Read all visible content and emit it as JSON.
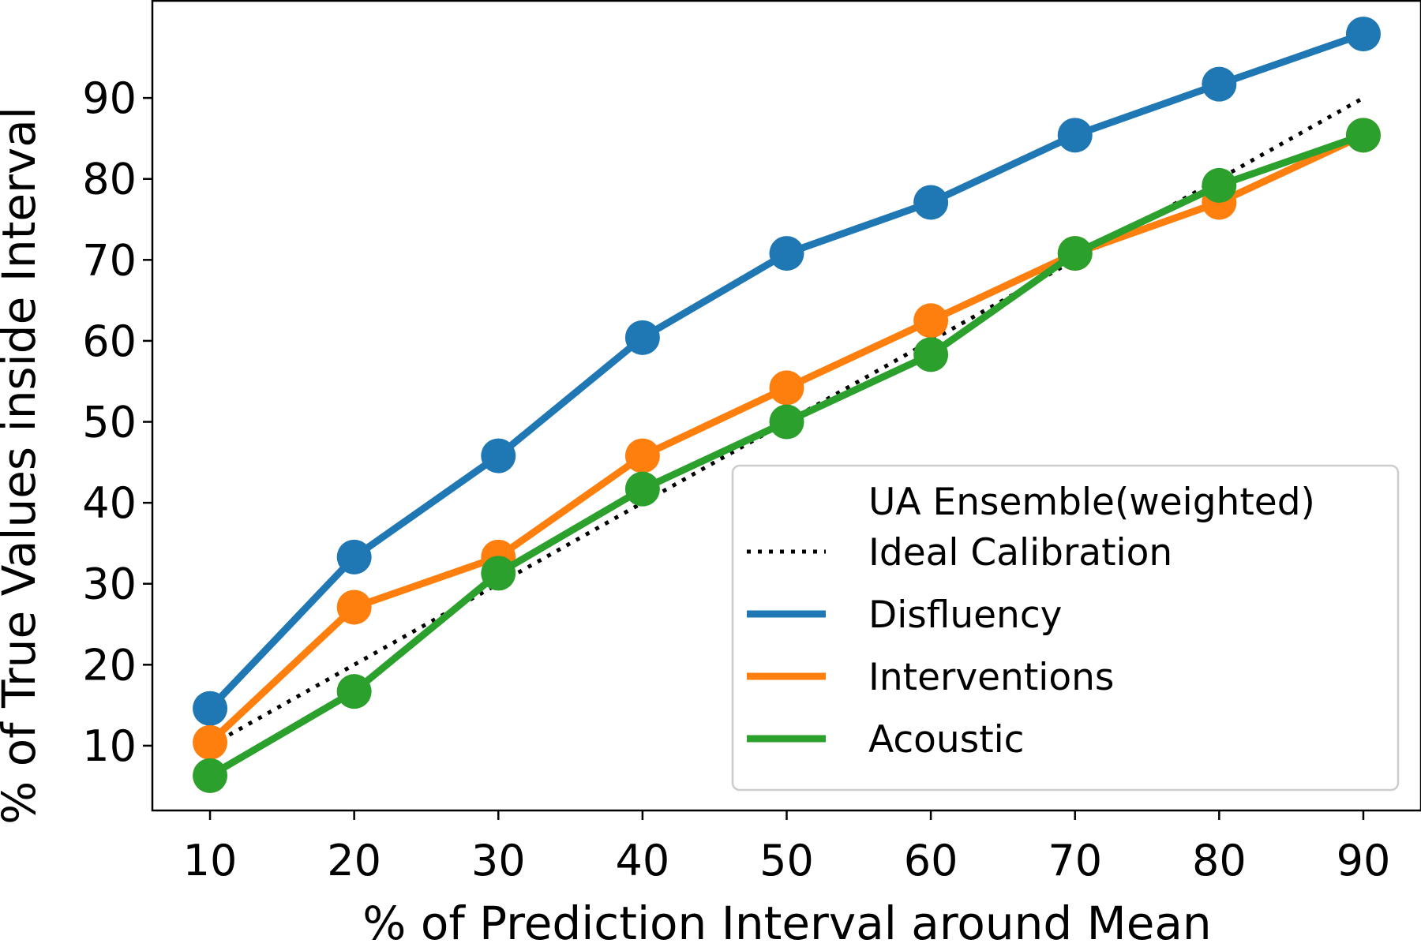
{
  "chart_data": {
    "type": "line",
    "title": "",
    "xlabel": "% of Prediction Interval around Mean",
    "ylabel": "% of True Values inside Interval",
    "x": [
      10,
      20,
      30,
      40,
      50,
      60,
      70,
      80,
      90
    ],
    "xlim": [
      6,
      94
    ],
    "ylim": [
      2,
      102
    ],
    "xticks": [
      10,
      20,
      30,
      40,
      50,
      60,
      70,
      80,
      90
    ],
    "yticks": [
      10,
      20,
      30,
      40,
      50,
      60,
      70,
      80,
      90
    ],
    "grid": false,
    "legend_title": "UA Ensemble(weighted)",
    "legend_position": "lower-right",
    "series": [
      {
        "name": "Ideal Calibration",
        "style": "dotted",
        "markers": false,
        "color": "#000000",
        "values": [
          10,
          20,
          30,
          40,
          50,
          60,
          70,
          80,
          90
        ]
      },
      {
        "name": "Disfluency",
        "style": "solid",
        "markers": true,
        "color": "#1f77b4",
        "values": [
          14.6,
          33.3,
          45.8,
          60.4,
          70.8,
          77.1,
          85.4,
          91.7,
          97.9
        ]
      },
      {
        "name": "Interventions",
        "style": "solid",
        "markers": true,
        "color": "#ff7f0e",
        "values": [
          10.4,
          27.1,
          33.3,
          45.8,
          54.2,
          62.5,
          70.8,
          77.1,
          85.4
        ]
      },
      {
        "name": "Acoustic",
        "style": "solid",
        "markers": true,
        "color": "#2ca02c",
        "values": [
          6.3,
          16.7,
          31.3,
          41.7,
          50.0,
          58.3,
          70.8,
          79.2,
          85.4
        ]
      }
    ]
  }
}
